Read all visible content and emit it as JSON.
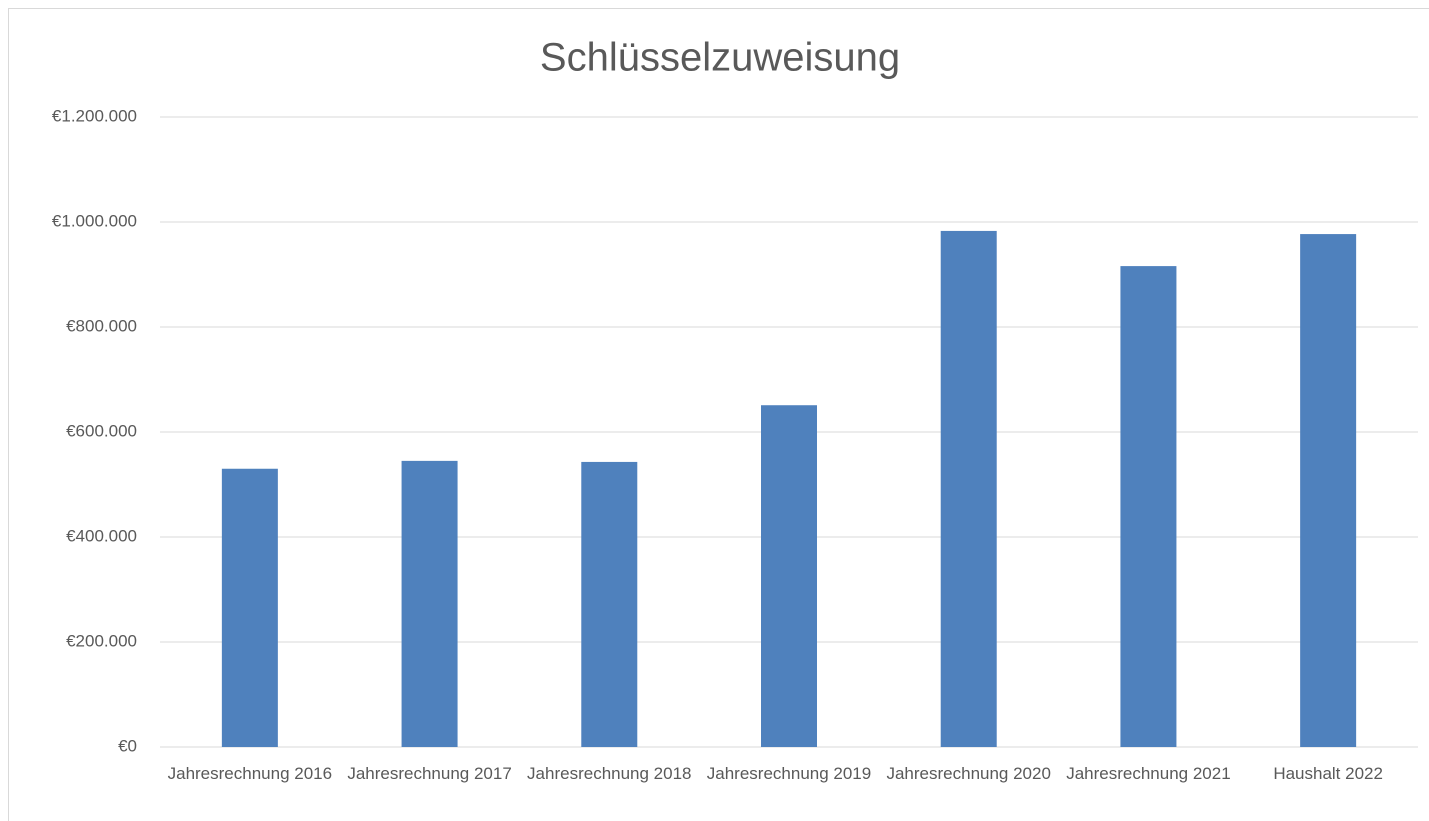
{
  "chart_data": {
    "type": "bar",
    "title": "Schlüsselzuweisung",
    "categories": [
      "Jahresrechnung 2016",
      "Jahresrechnung 2017",
      "Jahresrechnung 2018",
      "Jahresrechnung 2019",
      "Jahresrechnung 2020",
      "Jahresrechnung 2021",
      "Haushalt 2022"
    ],
    "values": [
      530000,
      545000,
      543000,
      651000,
      983000,
      916000,
      977000
    ],
    "color": "#4f81bd",
    "ylim": [
      0,
      1200000
    ],
    "yticks": [
      {
        "value": 0,
        "label": "€0"
      },
      {
        "value": 200000,
        "label": "€200.000"
      },
      {
        "value": 400000,
        "label": "€400.000"
      },
      {
        "value": 600000,
        "label": "€600.000"
      },
      {
        "value": 800000,
        "label": "€800.000"
      },
      {
        "value": 1000000,
        "label": "€1.000.000"
      },
      {
        "value": 1200000,
        "label": "€1.200.000"
      }
    ],
    "grid": true
  }
}
